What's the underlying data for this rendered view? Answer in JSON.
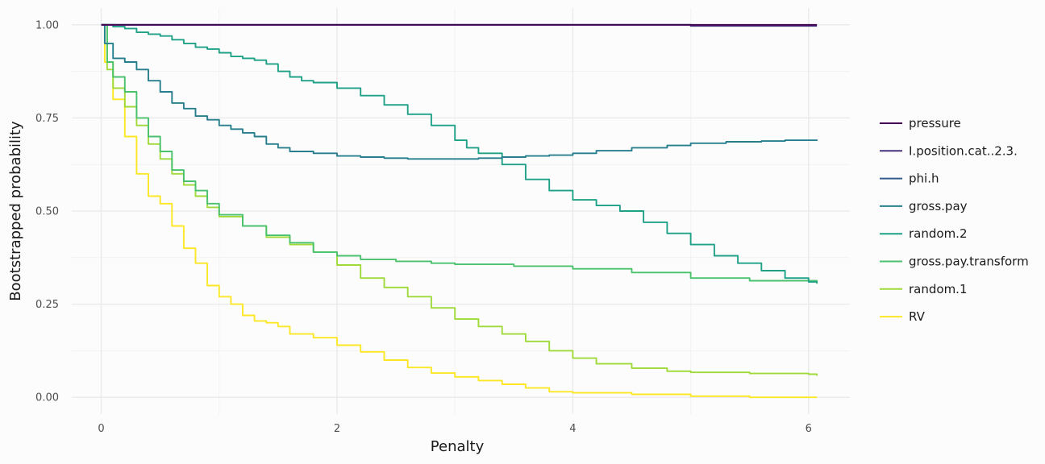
{
  "chart_data": {
    "type": "line",
    "xlabel": "Penalty",
    "ylabel": "Bootstrapped probability",
    "xlim": [
      -0.25,
      6.35
    ],
    "ylim": [
      -0.045,
      1.045
    ],
    "x_ticks": [
      0,
      2,
      4,
      6
    ],
    "x_tick_labels": [
      "0",
      "2",
      "4",
      "6"
    ],
    "y_ticks": [
      0,
      0.25,
      0.5,
      0.75,
      1.0
    ],
    "y_tick_labels": [
      "0.00",
      "0.25",
      "0.50",
      "0.75",
      "1.00"
    ],
    "grid": true,
    "legend_position": "right",
    "series": [
      {
        "name": "pressure",
        "color": "#440154",
        "points": [
          [
            0,
            1.0
          ],
          [
            5.0,
            1.0
          ],
          [
            5.5,
            1.0
          ],
          [
            6.07,
            1.0
          ]
        ]
      },
      {
        "name": "I.position.cat..2.3.",
        "color": "#46337E",
        "points": [
          [
            0,
            1.0
          ],
          [
            4.95,
            1.0
          ],
          [
            5.0,
            0.997
          ],
          [
            5.8,
            0.997
          ],
          [
            6.07,
            0.997
          ]
        ]
      },
      {
        "name": "phi.h",
        "color": "#365C8D",
        "points": [
          [
            0,
            1.0
          ],
          [
            4.9,
            1.0
          ],
          [
            5.0,
            0.998
          ],
          [
            6.07,
            0.998
          ]
        ]
      },
      {
        "name": "gross.pay",
        "color": "#277F8E",
        "points": [
          [
            0,
            1.0
          ],
          [
            0.03,
            0.95
          ],
          [
            0.1,
            0.91
          ],
          [
            0.2,
            0.9
          ],
          [
            0.3,
            0.88
          ],
          [
            0.4,
            0.85
          ],
          [
            0.5,
            0.82
          ],
          [
            0.6,
            0.79
          ],
          [
            0.7,
            0.775
          ],
          [
            0.8,
            0.755
          ],
          [
            0.9,
            0.745
          ],
          [
            1.0,
            0.73
          ],
          [
            1.1,
            0.72
          ],
          [
            1.2,
            0.71
          ],
          [
            1.3,
            0.7
          ],
          [
            1.4,
            0.68
          ],
          [
            1.5,
            0.67
          ],
          [
            1.6,
            0.66
          ],
          [
            1.8,
            0.655
          ],
          [
            2.0,
            0.648
          ],
          [
            2.2,
            0.645
          ],
          [
            2.4,
            0.642
          ],
          [
            2.6,
            0.64
          ],
          [
            2.8,
            0.64
          ],
          [
            3.0,
            0.64
          ],
          [
            3.2,
            0.642
          ],
          [
            3.4,
            0.645
          ],
          [
            3.6,
            0.648
          ],
          [
            3.8,
            0.65
          ],
          [
            4.0,
            0.655
          ],
          [
            4.2,
            0.662
          ],
          [
            4.5,
            0.67
          ],
          [
            4.8,
            0.676
          ],
          [
            5.0,
            0.682
          ],
          [
            5.3,
            0.686
          ],
          [
            5.6,
            0.688
          ],
          [
            5.8,
            0.69
          ],
          [
            6.07,
            0.692
          ]
        ]
      },
      {
        "name": "random.2",
        "color": "#1FA187",
        "points": [
          [
            0,
            1.0
          ],
          [
            0.1,
            0.995
          ],
          [
            0.2,
            0.99
          ],
          [
            0.3,
            0.98
          ],
          [
            0.4,
            0.975
          ],
          [
            0.5,
            0.97
          ],
          [
            0.6,
            0.96
          ],
          [
            0.7,
            0.95
          ],
          [
            0.8,
            0.94
          ],
          [
            0.9,
            0.935
          ],
          [
            1.0,
            0.925
          ],
          [
            1.1,
            0.915
          ],
          [
            1.2,
            0.91
          ],
          [
            1.3,
            0.905
          ],
          [
            1.4,
            0.895
          ],
          [
            1.5,
            0.875
          ],
          [
            1.6,
            0.86
          ],
          [
            1.7,
            0.85
          ],
          [
            1.8,
            0.845
          ],
          [
            2.0,
            0.83
          ],
          [
            2.2,
            0.81
          ],
          [
            2.4,
            0.785
          ],
          [
            2.6,
            0.76
          ],
          [
            2.8,
            0.73
          ],
          [
            3.0,
            0.69
          ],
          [
            3.1,
            0.67
          ],
          [
            3.2,
            0.655
          ],
          [
            3.4,
            0.625
          ],
          [
            3.6,
            0.585
          ],
          [
            3.8,
            0.555
          ],
          [
            4.0,
            0.53
          ],
          [
            4.2,
            0.515
          ],
          [
            4.4,
            0.5
          ],
          [
            4.6,
            0.47
          ],
          [
            4.8,
            0.44
          ],
          [
            5.0,
            0.41
          ],
          [
            5.2,
            0.38
          ],
          [
            5.4,
            0.36
          ],
          [
            5.6,
            0.34
          ],
          [
            5.8,
            0.32
          ],
          [
            6.0,
            0.31
          ],
          [
            6.07,
            0.307
          ]
        ]
      },
      {
        "name": "gross.pay.transform",
        "color": "#4AC16D",
        "points": [
          [
            0,
            1.0
          ],
          [
            0.05,
            0.9
          ],
          [
            0.1,
            0.86
          ],
          [
            0.2,
            0.82
          ],
          [
            0.3,
            0.75
          ],
          [
            0.4,
            0.7
          ],
          [
            0.5,
            0.66
          ],
          [
            0.6,
            0.61
          ],
          [
            0.7,
            0.58
          ],
          [
            0.8,
            0.555
          ],
          [
            0.9,
            0.52
          ],
          [
            1.0,
            0.49
          ],
          [
            1.2,
            0.46
          ],
          [
            1.4,
            0.435
          ],
          [
            1.6,
            0.415
          ],
          [
            1.8,
            0.39
          ],
          [
            2.0,
            0.38
          ],
          [
            2.2,
            0.37
          ],
          [
            2.5,
            0.365
          ],
          [
            2.8,
            0.36
          ],
          [
            3.0,
            0.357
          ],
          [
            3.5,
            0.352
          ],
          [
            4.0,
            0.345
          ],
          [
            4.5,
            0.335
          ],
          [
            5.0,
            0.32
          ],
          [
            5.5,
            0.313
          ],
          [
            6.07,
            0.305
          ]
        ]
      },
      {
        "name": "random.1",
        "color": "#9FDA3A",
        "points": [
          [
            0,
            1.0
          ],
          [
            0.05,
            0.88
          ],
          [
            0.1,
            0.83
          ],
          [
            0.2,
            0.78
          ],
          [
            0.3,
            0.73
          ],
          [
            0.4,
            0.68
          ],
          [
            0.5,
            0.64
          ],
          [
            0.6,
            0.6
          ],
          [
            0.7,
            0.57
          ],
          [
            0.8,
            0.54
          ],
          [
            0.9,
            0.51
          ],
          [
            1.0,
            0.485
          ],
          [
            1.2,
            0.46
          ],
          [
            1.4,
            0.43
          ],
          [
            1.6,
            0.41
          ],
          [
            1.8,
            0.39
          ],
          [
            2.0,
            0.355
          ],
          [
            2.2,
            0.32
          ],
          [
            2.4,
            0.295
          ],
          [
            2.6,
            0.27
          ],
          [
            2.8,
            0.24
          ],
          [
            3.0,
            0.21
          ],
          [
            3.2,
            0.19
          ],
          [
            3.4,
            0.17
          ],
          [
            3.6,
            0.15
          ],
          [
            3.8,
            0.125
          ],
          [
            4.0,
            0.105
          ],
          [
            4.2,
            0.09
          ],
          [
            4.5,
            0.078
          ],
          [
            4.8,
            0.07
          ],
          [
            5.0,
            0.067
          ],
          [
            5.5,
            0.064
          ],
          [
            6.0,
            0.062
          ],
          [
            6.07,
            0.058
          ]
        ]
      },
      {
        "name": "RV",
        "color": "#FDE725",
        "points": [
          [
            0,
            1.0
          ],
          [
            0.03,
            0.9
          ],
          [
            0.1,
            0.8
          ],
          [
            0.2,
            0.7
          ],
          [
            0.3,
            0.6
          ],
          [
            0.4,
            0.54
          ],
          [
            0.5,
            0.52
          ],
          [
            0.6,
            0.46
          ],
          [
            0.7,
            0.4
          ],
          [
            0.8,
            0.36
          ],
          [
            0.9,
            0.3
          ],
          [
            1.0,
            0.27
          ],
          [
            1.1,
            0.25
          ],
          [
            1.2,
            0.22
          ],
          [
            1.3,
            0.205
          ],
          [
            1.4,
            0.2
          ],
          [
            1.5,
            0.19
          ],
          [
            1.6,
            0.17
          ],
          [
            1.8,
            0.16
          ],
          [
            2.0,
            0.14
          ],
          [
            2.2,
            0.122
          ],
          [
            2.4,
            0.1
          ],
          [
            2.6,
            0.08
          ],
          [
            2.8,
            0.065
          ],
          [
            3.0,
            0.055
          ],
          [
            3.2,
            0.045
          ],
          [
            3.4,
            0.035
          ],
          [
            3.6,
            0.025
          ],
          [
            3.8,
            0.015
          ],
          [
            4.0,
            0.012
          ],
          [
            4.5,
            0.008
          ],
          [
            5.0,
            0.003
          ],
          [
            5.5,
            0.0
          ],
          [
            6.07,
            0.0
          ]
        ]
      }
    ]
  }
}
